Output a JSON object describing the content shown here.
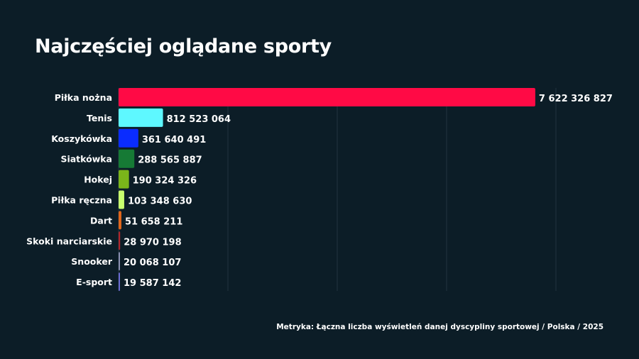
{
  "chart_data": {
    "type": "bar",
    "orientation": "horizontal",
    "title": "Najczęściej oglądane sporty",
    "footnote": "Metryka: Łączna liczba wyświetleń danej dyscypliny sportowej / Polska / 2025",
    "categories": [
      "Piłka nożna",
      "Tenis",
      "Koszykówka",
      "Siatkówka",
      "Hokej",
      "Piłka ręczna",
      "Dart",
      "Skoki narciarskie",
      "Snooker",
      "E-sport"
    ],
    "values": [
      7622326827,
      812523064,
      361640491,
      288565887,
      190324326,
      103348630,
      51658211,
      28970198,
      20068107,
      19587142
    ],
    "value_labels": [
      "7 622 326 827",
      "812 523 064",
      "361 640 491",
      "288 565 887",
      "190 324 326",
      "103 348 630",
      "51 658 211",
      "28 970 198",
      "20 068 107",
      "19 587 142"
    ],
    "colors": [
      "#ff0a45",
      "#5ef8ff",
      "#0a2cff",
      "#167a35",
      "#7bb51a",
      "#c8ff6e",
      "#e0661c",
      "#b0262c",
      "#8a8fb0",
      "#6b6cd2"
    ],
    "xlim": [
      0,
      8000000000
    ],
    "grid_x": [
      2000000000,
      4000000000,
      6000000000,
      8000000000
    ],
    "grid": true
  }
}
